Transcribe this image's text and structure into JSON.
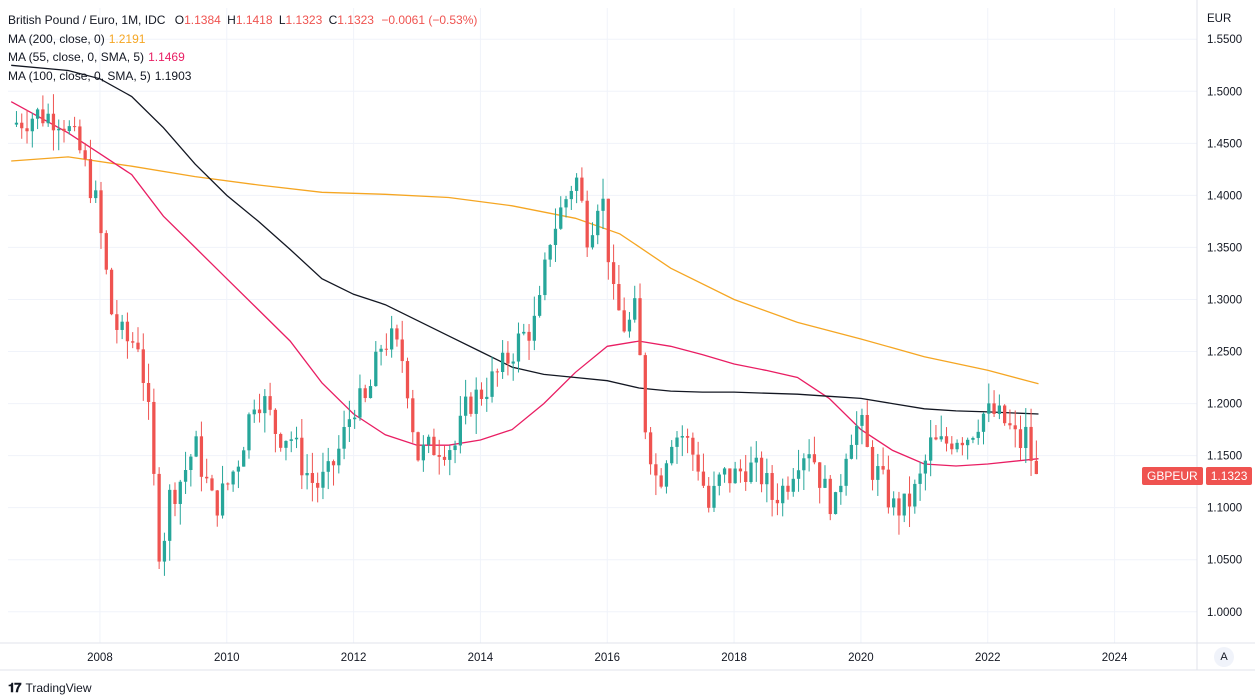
{
  "legend": {
    "title": "British Pound / Euro, 1M, IDC",
    "o_label": "O",
    "o_value": "1.1384",
    "h_label": "H",
    "h_value": "1.1418",
    "l_label": "L",
    "l_value": "1.1323",
    "c_label": "C",
    "c_value": "1.1323",
    "change": "−0.0061 (−0.53%)",
    "ma200_label": "MA (200, close, 0)",
    "ma200_value": "1.2191",
    "ma55_label": "MA (55, close, 0, SMA, 5)",
    "ma55_value": "1.1469",
    "ma100_label": "MA (100, close, 0, SMA, 5)",
    "ma100_value": "1.1903"
  },
  "price_tag": {
    "symbol": "GBPEUR",
    "value": "1.1323"
  },
  "footer": {
    "logo": "𝟏𝟕",
    "brand": "TradingView"
  },
  "auto_button": "A",
  "colors": {
    "up": "#26a69a",
    "down": "#ef5350",
    "ma200": "#f5a623",
    "ma55": "#e91e63",
    "ma100": "#131722",
    "grid": "#f0f3fa"
  },
  "chart_data": {
    "type": "candlestick",
    "title": "British Pound / Euro, 1M, IDC",
    "y_axis_unit": "EUR",
    "ylim": [
      0.97,
      1.58
    ],
    "xlim": [
      2006.55,
      2025.3
    ],
    "y_ticks": [
      "1.0000",
      "1.0500",
      "1.1000",
      "1.1500",
      "1.2000",
      "1.2500",
      "1.3000",
      "1.3500",
      "1.4000",
      "1.4500",
      "1.5000",
      "1.5500"
    ],
    "x_ticks": [
      "2008",
      "2010",
      "2012",
      "2014",
      "2016",
      "2018",
      "2020",
      "2022",
      "2024"
    ],
    "grid": true,
    "close_anchors": [
      [
        2006.6,
        1.468
      ],
      [
        2007.0,
        1.478
      ],
      [
        2007.4,
        1.475
      ],
      [
        2007.7,
        1.44
      ],
      [
        2007.95,
        1.39
      ],
      [
        2008.2,
        1.28
      ],
      [
        2008.4,
        1.26
      ],
      [
        2008.6,
        1.26
      ],
      [
        2008.75,
        1.2
      ],
      [
        2008.95,
        1.05
      ],
      [
        2009.1,
        1.11
      ],
      [
        2009.3,
        1.13
      ],
      [
        2009.5,
        1.16
      ],
      [
        2009.8,
        1.1
      ],
      [
        2010.0,
        1.12
      ],
      [
        2010.2,
        1.15
      ],
      [
        2010.45,
        1.21
      ],
      [
        2010.6,
        1.2
      ],
      [
        2010.8,
        1.17
      ],
      [
        2011.0,
        1.17
      ],
      [
        2011.2,
        1.14
      ],
      [
        2011.4,
        1.12
      ],
      [
        2011.6,
        1.13
      ],
      [
        2011.8,
        1.16
      ],
      [
        2012.0,
        1.2
      ],
      [
        2012.2,
        1.2
      ],
      [
        2012.45,
        1.26
      ],
      [
        2012.6,
        1.26
      ],
      [
        2012.8,
        1.24
      ],
      [
        2013.0,
        1.15
      ],
      [
        2013.3,
        1.16
      ],
      [
        2013.6,
        1.16
      ],
      [
        2013.8,
        1.2
      ],
      [
        2014.0,
        1.21
      ],
      [
        2014.3,
        1.23
      ],
      [
        2014.6,
        1.26
      ],
      [
        2014.9,
        1.28
      ],
      [
        2015.1,
        1.36
      ],
      [
        2015.3,
        1.39
      ],
      [
        2015.5,
        1.42
      ],
      [
        2015.7,
        1.36
      ],
      [
        2015.9,
        1.41
      ],
      [
        2016.1,
        1.3
      ],
      [
        2016.3,
        1.27
      ],
      [
        2016.45,
        1.29
      ],
      [
        2016.6,
        1.18
      ],
      [
        2016.8,
        1.12
      ],
      [
        2017.0,
        1.17
      ],
      [
        2017.2,
        1.17
      ],
      [
        2017.45,
        1.14
      ],
      [
        2017.6,
        1.1
      ],
      [
        2017.8,
        1.13
      ],
      [
        2018.0,
        1.13
      ],
      [
        2018.2,
        1.14
      ],
      [
        2018.45,
        1.13
      ],
      [
        2018.6,
        1.11
      ],
      [
        2018.8,
        1.12
      ],
      [
        2019.0,
        1.15
      ],
      [
        2019.2,
        1.16
      ],
      [
        2019.4,
        1.12
      ],
      [
        2019.6,
        1.1
      ],
      [
        2019.8,
        1.17
      ],
      [
        2020.0,
        1.18
      ],
      [
        2020.15,
        1.14
      ],
      [
        2020.3,
        1.13
      ],
      [
        2020.5,
        1.1
      ],
      [
        2020.7,
        1.1
      ],
      [
        2020.9,
        1.12
      ],
      [
        2021.1,
        1.16
      ],
      [
        2021.3,
        1.16
      ],
      [
        2021.5,
        1.17
      ],
      [
        2021.7,
        1.17
      ],
      [
        2021.9,
        1.19
      ],
      [
        2022.1,
        1.19
      ],
      [
        2022.3,
        1.18
      ],
      [
        2022.5,
        1.16
      ],
      [
        2022.6,
        1.17
      ],
      [
        2022.72,
        1.1384
      ],
      [
        2022.8,
        1.1323
      ]
    ],
    "series": [
      {
        "name": "MA (200, close, 0)",
        "last": 1.2191,
        "points": [
          [
            2006.6,
            1.433
          ],
          [
            2007.5,
            1.437
          ],
          [
            2008.5,
            1.428
          ],
          [
            2009.5,
            1.418
          ],
          [
            2010.5,
            1.41
          ],
          [
            2011.5,
            1.403
          ],
          [
            2012.5,
            1.401
          ],
          [
            2013.5,
            1.398
          ],
          [
            2014.5,
            1.39
          ],
          [
            2015.5,
            1.378
          ],
          [
            2016.2,
            1.363
          ],
          [
            2017.0,
            1.33
          ],
          [
            2018.0,
            1.3
          ],
          [
            2019.0,
            1.278
          ],
          [
            2020.0,
            1.262
          ],
          [
            2021.0,
            1.245
          ],
          [
            2022.0,
            1.232
          ],
          [
            2022.8,
            1.219
          ]
        ]
      },
      {
        "name": "MA (55, close, 0, SMA, 5)",
        "last": 1.1469,
        "points": [
          [
            2006.6,
            1.49
          ],
          [
            2007.5,
            1.46
          ],
          [
            2008.0,
            1.44
          ],
          [
            2008.5,
            1.42
          ],
          [
            2009.0,
            1.38
          ],
          [
            2009.5,
            1.35
          ],
          [
            2010.0,
            1.32
          ],
          [
            2010.5,
            1.29
          ],
          [
            2011.0,
            1.26
          ],
          [
            2011.5,
            1.22
          ],
          [
            2012.0,
            1.19
          ],
          [
            2012.5,
            1.17
          ],
          [
            2013.0,
            1.16
          ],
          [
            2013.5,
            1.16
          ],
          [
            2014.0,
            1.165
          ],
          [
            2014.5,
            1.175
          ],
          [
            2015.0,
            1.2
          ],
          [
            2015.5,
            1.23
          ],
          [
            2016.0,
            1.255
          ],
          [
            2016.5,
            1.26
          ],
          [
            2017.0,
            1.255
          ],
          [
            2017.5,
            1.247
          ],
          [
            2018.0,
            1.238
          ],
          [
            2018.5,
            1.232
          ],
          [
            2019.0,
            1.225
          ],
          [
            2019.5,
            1.205
          ],
          [
            2020.0,
            1.175
          ],
          [
            2020.5,
            1.155
          ],
          [
            2021.0,
            1.142
          ],
          [
            2021.5,
            1.14
          ],
          [
            2022.0,
            1.142
          ],
          [
            2022.8,
            1.147
          ]
        ]
      },
      {
        "name": "MA (100, close, 0, SMA, 5)",
        "last": 1.1903,
        "points": [
          [
            2006.6,
            1.525
          ],
          [
            2007.5,
            1.52
          ],
          [
            2008.0,
            1.512
          ],
          [
            2008.5,
            1.495
          ],
          [
            2009.0,
            1.465
          ],
          [
            2009.5,
            1.43
          ],
          [
            2010.0,
            1.4
          ],
          [
            2010.5,
            1.375
          ],
          [
            2011.0,
            1.348
          ],
          [
            2011.5,
            1.32
          ],
          [
            2012.0,
            1.305
          ],
          [
            2012.5,
            1.295
          ],
          [
            2013.0,
            1.28
          ],
          [
            2013.5,
            1.265
          ],
          [
            2014.0,
            1.25
          ],
          [
            2014.5,
            1.235
          ],
          [
            2015.0,
            1.228
          ],
          [
            2015.5,
            1.225
          ],
          [
            2016.0,
            1.222
          ],
          [
            2016.5,
            1.215
          ],
          [
            2017.0,
            1.212
          ],
          [
            2017.5,
            1.211
          ],
          [
            2018.0,
            1.211
          ],
          [
            2018.5,
            1.21
          ],
          [
            2019.0,
            1.209
          ],
          [
            2019.5,
            1.207
          ],
          [
            2020.0,
            1.205
          ],
          [
            2020.5,
            1.2
          ],
          [
            2021.0,
            1.195
          ],
          [
            2021.5,
            1.193
          ],
          [
            2022.0,
            1.192
          ],
          [
            2022.8,
            1.19
          ]
        ]
      }
    ]
  }
}
